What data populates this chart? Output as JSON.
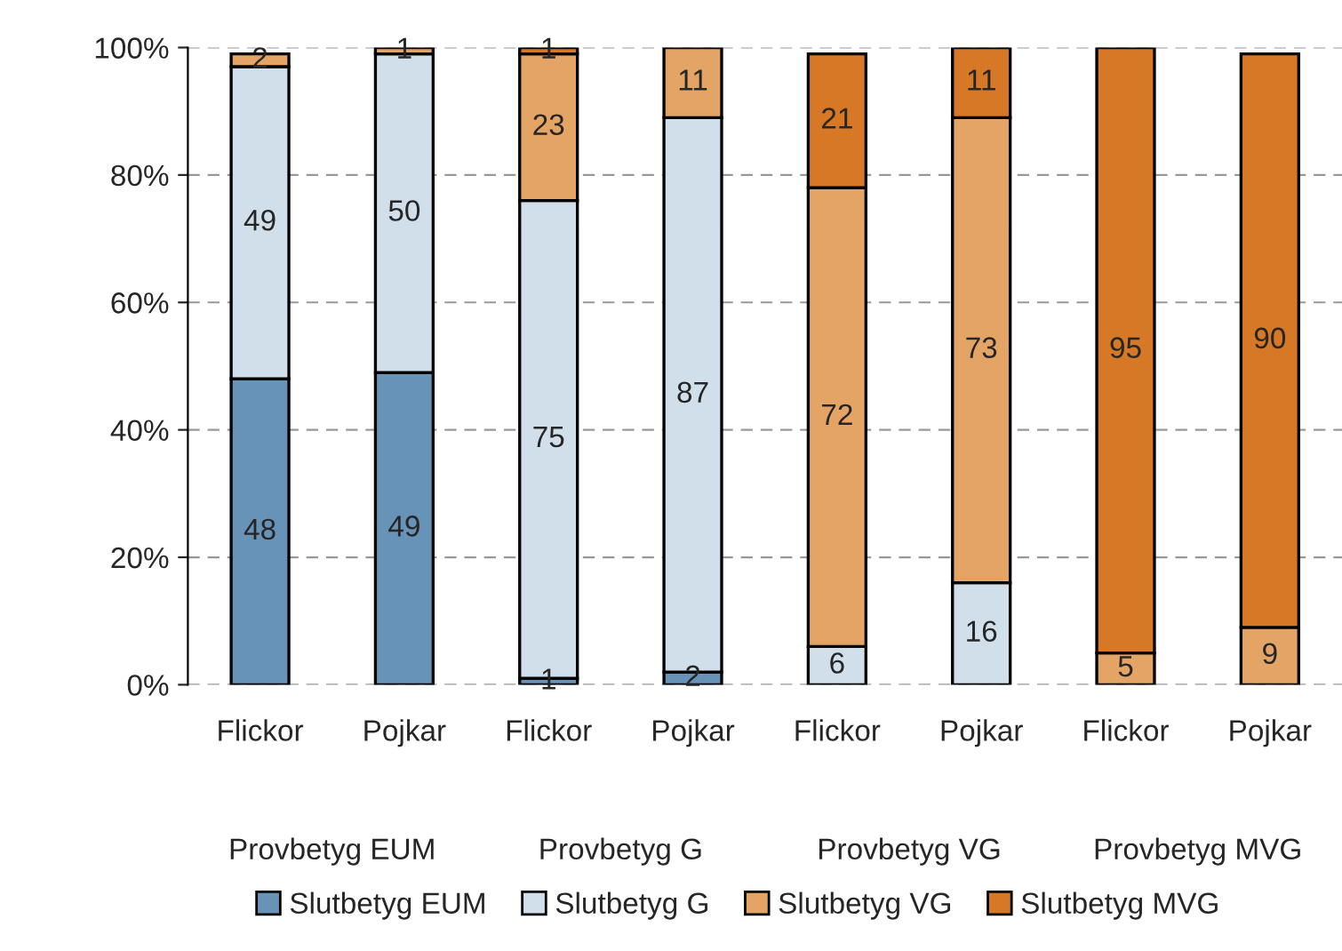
{
  "chart_data": {
    "type": "bar",
    "stacked": true,
    "data_labels": true,
    "categories": [
      "Flickor",
      "Pojkar",
      "Flickor",
      "Pojkar",
      "Flickor",
      "Pojkar",
      "Flickor",
      "Pojkar"
    ],
    "series": [
      {
        "name": "Slutbetyg EUM",
        "color": "#6793b8",
        "values": [
          48,
          49,
          1,
          2,
          null,
          null,
          null,
          null
        ]
      },
      {
        "name": "Slutbetyg G",
        "color": "#d1dfea",
        "values": [
          49,
          50,
          75,
          87,
          6,
          16,
          null,
          null
        ]
      },
      {
        "name": "Slutbetyg VG",
        "color": "#e3a466",
        "values": [
          2,
          1,
          23,
          11,
          72,
          73,
          5,
          9
        ]
      },
      {
        "name": "Slutbetyg MVG",
        "color": "#d67825",
        "values": [
          null,
          null,
          1,
          null,
          21,
          11,
          95,
          90
        ]
      }
    ],
    "annotations": [
      "Provbetyg EUM",
      "Provbetyg G",
      "Provbetyg VG",
      "Provbetyg MVG"
    ],
    "ylim": [
      0,
      100
    ],
    "yticks": [
      {
        "value": 0,
        "label": "0%"
      },
      {
        "value": 20,
        "label": "20%"
      },
      {
        "value": 40,
        "label": "40%"
      },
      {
        "value": 60,
        "label": "60%"
      },
      {
        "value": 80,
        "label": "80%"
      },
      {
        "value": 100,
        "label": "100%"
      }
    ],
    "grid": "y",
    "legend": "bottom"
  }
}
